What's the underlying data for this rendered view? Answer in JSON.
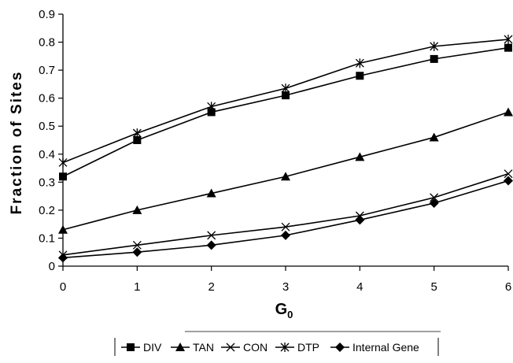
{
  "chart_data": {
    "type": "line",
    "title": "",
    "xlabel": "G",
    "xlabel_subscript": "0",
    "ylabel": "Fraction of Sites",
    "x": [
      0,
      1,
      2,
      3,
      4,
      5,
      6
    ],
    "xlim": [
      0,
      6
    ],
    "ylim": [
      0,
      0.9
    ],
    "x_ticks": [
      "0",
      "1",
      "2",
      "3",
      "4",
      "5",
      "6"
    ],
    "y_ticks": [
      "0",
      "0.1",
      "0.2",
      "0.3",
      "0.4",
      "0.5",
      "0.6",
      "0.7",
      "0.8",
      "0.9"
    ],
    "y_tick_values": [
      0,
      0.1,
      0.2,
      0.3,
      0.4,
      0.5,
      0.6,
      0.7,
      0.8,
      0.9
    ],
    "grid": false,
    "legend_position": "bottom",
    "series": [
      {
        "name": "DIV",
        "marker": "square",
        "values": [
          0.32,
          0.45,
          0.55,
          0.61,
          0.68,
          0.74,
          0.78
        ]
      },
      {
        "name": "TAN",
        "marker": "triangle",
        "values": [
          0.13,
          0.2,
          0.26,
          0.32,
          0.39,
          0.46,
          0.55
        ]
      },
      {
        "name": "CON",
        "marker": "x",
        "values": [
          0.04,
          0.075,
          0.11,
          0.14,
          0.18,
          0.245,
          0.33
        ]
      },
      {
        "name": "DTP",
        "marker": "asterisk",
        "values": [
          0.37,
          0.475,
          0.57,
          0.635,
          0.725,
          0.785,
          0.81
        ]
      },
      {
        "name": "Internal Gene",
        "marker": "diamond",
        "values": [
          0.03,
          0.05,
          0.075,
          0.11,
          0.165,
          0.225,
          0.305
        ]
      }
    ]
  }
}
